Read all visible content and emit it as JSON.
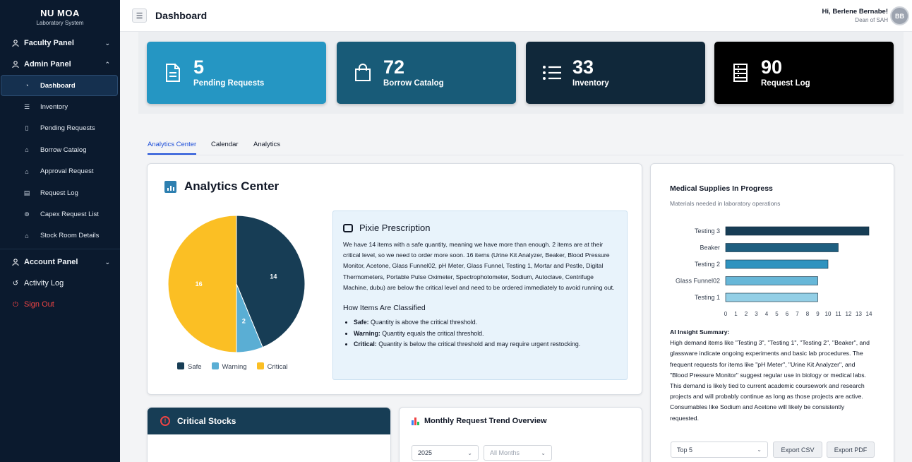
{
  "sidebar": {
    "brand": "NU MOA",
    "brand_sub": "Laboratory System",
    "faculty_panel": "Faculty Panel",
    "admin_panel": "Admin Panel",
    "items": [
      {
        "label": "Dashboard",
        "icon": "dashboard-icon"
      },
      {
        "label": "Inventory",
        "icon": "list-icon"
      },
      {
        "label": "Pending Requests",
        "icon": "file-icon"
      },
      {
        "label": "Borrow Catalog",
        "icon": "bag-icon"
      },
      {
        "label": "Approval Request",
        "icon": "bag-icon"
      },
      {
        "label": "Request Log",
        "icon": "log-icon"
      },
      {
        "label": "Capex Request List",
        "icon": "capex-icon"
      },
      {
        "label": "Stock Room Details",
        "icon": "home-icon"
      }
    ],
    "account_panel": "Account Panel",
    "activity_log": "Activity Log",
    "sign_out": "Sign Out"
  },
  "topbar": {
    "title": "Dashboard",
    "user_name": "Hi, Berlene Bernabe!",
    "user_role": "Dean of SAH",
    "avatar_initials": "BB"
  },
  "stats": [
    {
      "value": "5",
      "label": "Pending Requests",
      "color": "#2596c3",
      "icon": "document-icon"
    },
    {
      "value": "72",
      "label": "Borrow Catalog",
      "color": "#185b78",
      "icon": "shopping-bag-icon"
    },
    {
      "value": "33",
      "label": "Inventory",
      "color": "#10283a",
      "icon": "list-icon"
    },
    {
      "value": "90",
      "label": "Request Log",
      "color": "#000000",
      "icon": "ledger-icon"
    }
  ],
  "tabs": [
    "Analytics Center",
    "Calendar",
    "Analytics"
  ],
  "analytics": {
    "title": "Analytics Center",
    "pie": {
      "type": "pie",
      "slices": [
        {
          "label": "Safe",
          "value": 14,
          "color": "#173d55"
        },
        {
          "label": "Warning",
          "value": 2,
          "color": "#5aaed4"
        },
        {
          "label": "Critical",
          "value": 16,
          "color": "#fbbf24"
        }
      ]
    },
    "pixie": {
      "title": "Pixie Prescription",
      "body": "We have 14 items with a safe quantity, meaning we have more than enough. 2 items are at their critical level, so we need to order more soon. 16 items (Urine Kit Analyzer, Beaker, Blood Pressure Monitor, Acetone, Glass Funnel02, pH Meter, Glass Funnel, Testing 1, Mortar and Pestle, Digital Thermometers, Portable Pulse Oximeter, Spectrophotometer, Sodium, Autoclave, Centrifuge Machine, dubu) are below the critical level and need to be ordered immediately to avoid running out.",
      "how_title": "How Items Are Classified",
      "rules": [
        {
          "term": "Safe:",
          "text": " Quantity is above the critical threshold."
        },
        {
          "term": "Warning:",
          "text": " Quantity equals the critical threshold."
        },
        {
          "term": "Critical:",
          "text": " Quantity is below the critical threshold and may require urgent restocking."
        }
      ]
    }
  },
  "supplies": {
    "title": "Medical Supplies In Progress",
    "subtitle": "Materials needed in laboratory operations",
    "chart_data": {
      "type": "bar",
      "orientation": "horizontal",
      "categories": [
        "Testing 3",
        "Beaker",
        "Testing 2",
        "Glass Funnel02",
        "Testing 1"
      ],
      "values": [
        14,
        11,
        10,
        9,
        9
      ],
      "colors": [
        "#173d55",
        "#1f5f80",
        "#2f93bf",
        "#67b7d8",
        "#93cfe6"
      ],
      "xlim": [
        0,
        14
      ],
      "xticks": [
        "0",
        "1",
        "2",
        "3",
        "4",
        "5",
        "6",
        "7",
        "8",
        "9",
        "10",
        "11",
        "12",
        "13",
        "14"
      ]
    },
    "ai_title": "AI Insight Summary:",
    "ai_text": "High demand items like \"Testing 3\", \"Testing 1\", \"Testing 2\", \"Beaker\", and glassware indicate ongoing experiments and basic lab procedures. The frequent requests for items like \"pH Meter\", \"Urine Kit Analyzer\", and \"Blood Pressure Monitor\" suggest regular use in biology or medical labs. This demand is likely tied to current academic coursework and research projects and will probably continue as long as those projects are active. Consumables like Sodium and Acetone will likely be consistently requested.",
    "top_select": "Top 5",
    "export_csv": "Export CSV",
    "export_pdf": "Export PDF"
  },
  "critical_stocks": {
    "title": "Critical Stocks"
  },
  "trend": {
    "title": "Monthly Request Trend Overview",
    "year": "2025",
    "months": "All Months"
  }
}
